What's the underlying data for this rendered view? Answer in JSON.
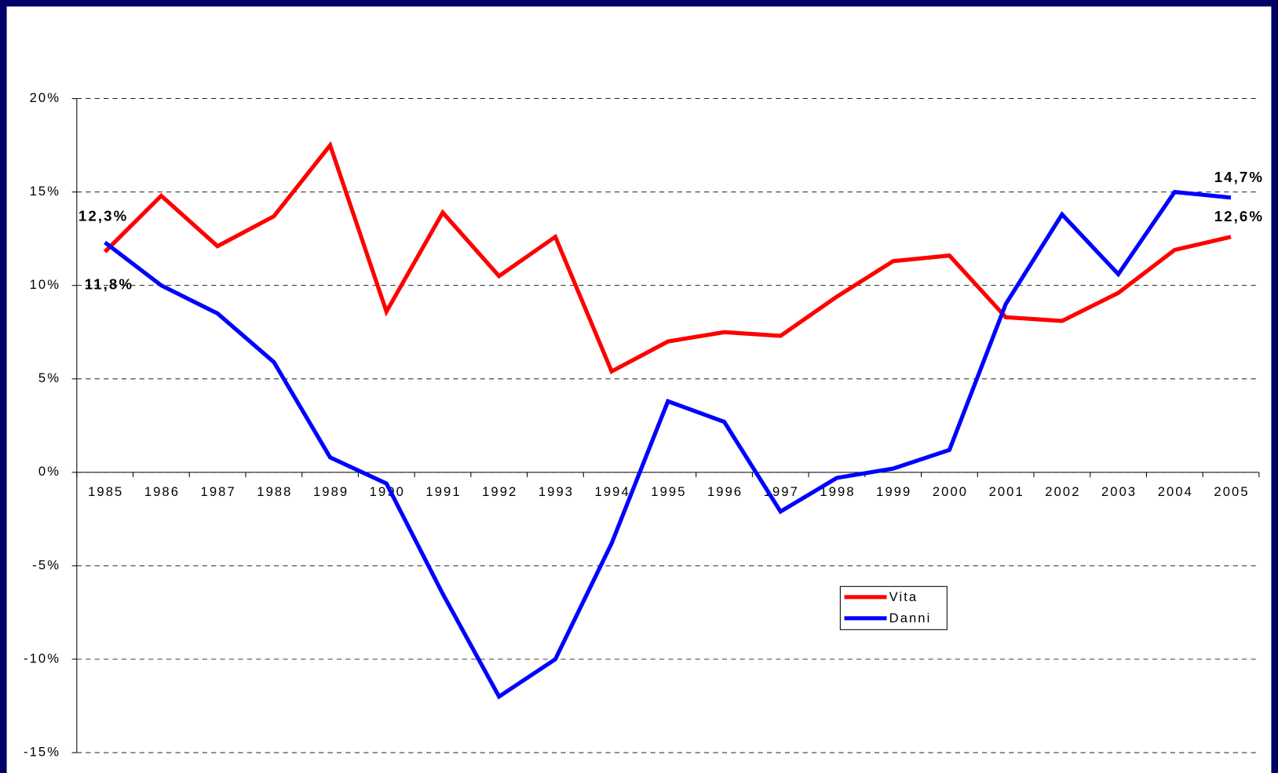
{
  "chart_data": {
    "type": "line",
    "categories": [
      "1985",
      "1986",
      "1987",
      "1988",
      "1989",
      "1990",
      "1991",
      "1992",
      "1993",
      "1994",
      "1995",
      "1996",
      "1997",
      "1998",
      "1999",
      "2000",
      "2001",
      "2002",
      "2003",
      "2004",
      "2005"
    ],
    "series": [
      {
        "name": "Vita",
        "color": "#ff0000",
        "values": [
          11.8,
          14.8,
          12.1,
          13.7,
          17.5,
          8.6,
          13.9,
          10.5,
          12.6,
          5.4,
          7.0,
          7.5,
          7.3,
          9.4,
          11.3,
          11.6,
          8.3,
          8.1,
          9.6,
          11.9,
          12.6
        ],
        "value_labels": [
          "11,8%",
          null,
          null,
          null,
          null,
          null,
          null,
          null,
          null,
          null,
          null,
          null,
          null,
          null,
          null,
          null,
          null,
          null,
          null,
          null,
          "12,6%"
        ]
      },
      {
        "name": "Danni",
        "color": "#0000ff",
        "values": [
          12.3,
          10.0,
          8.5,
          5.9,
          0.8,
          -0.6,
          -6.5,
          -12.0,
          -10.0,
          -3.8,
          3.8,
          2.7,
          -2.1,
          -0.3,
          0.2,
          1.2,
          9.0,
          13.8,
          10.6,
          15.0,
          14.7
        ],
        "value_labels": [
          "12,3%",
          null,
          null,
          null,
          null,
          null,
          null,
          null,
          null,
          null,
          null,
          null,
          null,
          null,
          null,
          null,
          null,
          null,
          null,
          null,
          "14,7%"
        ]
      }
    ],
    "ylim": [
      -15,
      20
    ],
    "yticks": [
      {
        "value": -15,
        "label": "-15%"
      },
      {
        "value": -10,
        "label": "-10%"
      },
      {
        "value": -5,
        "label": "-5%"
      },
      {
        "value": 0,
        "label": "0%"
      },
      {
        "value": 5,
        "label": "5%"
      },
      {
        "value": 10,
        "label": "10%"
      },
      {
        "value": 15,
        "label": "15%"
      },
      {
        "value": 20,
        "label": "20%"
      }
    ],
    "grid": true,
    "legend": "bottom-right"
  }
}
